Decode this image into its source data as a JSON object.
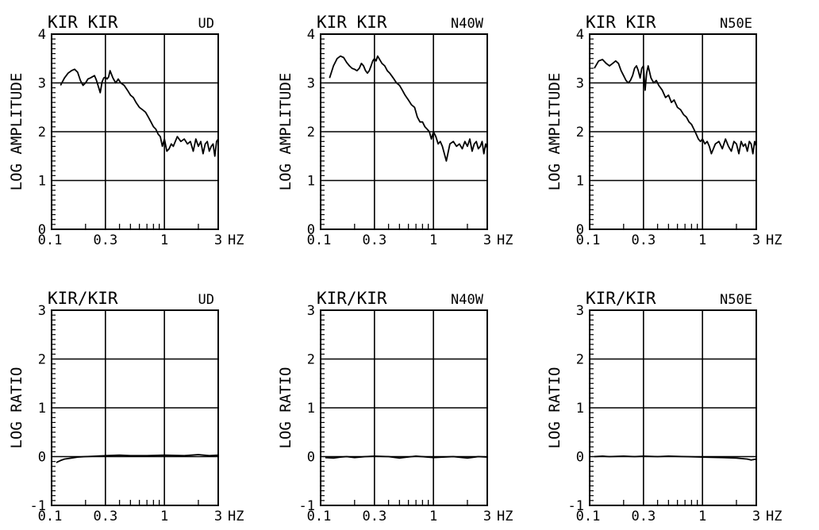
{
  "chart_data": [
    {
      "type": "line",
      "title": "KIR KIR",
      "component": "UD",
      "ylabel": "LOG AMPLITUDE",
      "xunit": "HZ",
      "xscale": "log",
      "xlim": [
        0.1,
        3
      ],
      "ylim": [
        0,
        4
      ],
      "x_tick_labels": [
        "0.1",
        "0.3",
        "1",
        "3"
      ],
      "y_tick_labels": [
        "0",
        "1",
        "2",
        "3",
        "4"
      ],
      "grid": true,
      "series": [
        {
          "x": [
            0.12,
            0.13,
            0.14,
            0.15,
            0.16,
            0.17,
            0.18,
            0.19,
            0.2,
            0.21,
            0.22,
            0.24,
            0.25,
            0.27,
            0.28,
            0.29,
            0.3,
            0.31,
            0.32,
            0.33,
            0.35,
            0.37,
            0.39,
            0.41,
            0.44,
            0.47,
            0.5,
            0.53,
            0.56,
            0.6,
            0.64,
            0.68,
            0.72,
            0.76,
            0.8,
            0.84,
            0.88,
            0.92,
            0.96,
            1.0,
            1.05,
            1.1,
            1.15,
            1.2,
            1.3,
            1.4,
            1.5,
            1.6,
            1.7,
            1.8,
            1.9,
            2.0,
            2.1,
            2.2,
            2.3,
            2.4,
            2.5,
            2.6,
            2.7,
            2.8,
            2.9,
            3.0
          ],
          "values": [
            2.95,
            3.1,
            3.2,
            3.25,
            3.28,
            3.22,
            3.05,
            2.95,
            3.0,
            3.08,
            3.1,
            3.15,
            3.05,
            2.8,
            3.02,
            3.1,
            3.12,
            3.08,
            3.12,
            3.25,
            3.1,
            3.0,
            3.08,
            3.0,
            2.95,
            2.85,
            2.75,
            2.7,
            2.6,
            2.5,
            2.45,
            2.4,
            2.3,
            2.2,
            2.1,
            2.05,
            1.95,
            1.9,
            1.7,
            1.85,
            1.6,
            1.65,
            1.75,
            1.7,
            1.9,
            1.8,
            1.85,
            1.75,
            1.8,
            1.6,
            1.85,
            1.7,
            1.8,
            1.55,
            1.75,
            1.8,
            1.6,
            1.7,
            1.75,
            1.5,
            1.8,
            1.85
          ]
        }
      ]
    },
    {
      "type": "line",
      "title": "KIR KIR",
      "component": "N40W",
      "ylabel": "LOG AMPLITUDE",
      "xunit": "HZ",
      "xscale": "log",
      "xlim": [
        0.1,
        3
      ],
      "ylim": [
        0,
        4
      ],
      "x_tick_labels": [
        "0.1",
        "0.3",
        "1",
        "3"
      ],
      "y_tick_labels": [
        "0",
        "1",
        "2",
        "3",
        "4"
      ],
      "grid": true,
      "series": [
        {
          "x": [
            0.12,
            0.13,
            0.14,
            0.15,
            0.16,
            0.17,
            0.18,
            0.19,
            0.2,
            0.21,
            0.22,
            0.23,
            0.24,
            0.25,
            0.26,
            0.27,
            0.28,
            0.29,
            0.3,
            0.31,
            0.32,
            0.33,
            0.35,
            0.37,
            0.39,
            0.41,
            0.44,
            0.47,
            0.5,
            0.53,
            0.56,
            0.6,
            0.64,
            0.68,
            0.72,
            0.76,
            0.8,
            0.84,
            0.88,
            0.92,
            0.96,
            1.0,
            1.05,
            1.1,
            1.15,
            1.2,
            1.3,
            1.4,
            1.5,
            1.6,
            1.7,
            1.8,
            1.9,
            2.0,
            2.1,
            2.2,
            2.3,
            2.4,
            2.5,
            2.6,
            2.7,
            2.8,
            2.9,
            3.0
          ],
          "values": [
            3.1,
            3.35,
            3.5,
            3.55,
            3.52,
            3.42,
            3.35,
            3.3,
            3.28,
            3.25,
            3.3,
            3.4,
            3.35,
            3.25,
            3.2,
            3.25,
            3.35,
            3.45,
            3.5,
            3.45,
            3.55,
            3.5,
            3.4,
            3.35,
            3.25,
            3.2,
            3.1,
            3.0,
            2.95,
            2.85,
            2.75,
            2.65,
            2.55,
            2.5,
            2.3,
            2.2,
            2.2,
            2.1,
            2.05,
            2.0,
            1.85,
            2.0,
            1.9,
            1.75,
            1.8,
            1.7,
            1.4,
            1.75,
            1.8,
            1.7,
            1.75,
            1.65,
            1.8,
            1.7,
            1.85,
            1.6,
            1.75,
            1.8,
            1.65,
            1.7,
            1.8,
            1.55,
            1.75,
            1.65
          ]
        }
      ]
    },
    {
      "type": "line",
      "title": "KIR KIR",
      "component": "N50E",
      "ylabel": "LOG AMPLITUDE",
      "xunit": "HZ",
      "xscale": "log",
      "xlim": [
        0.1,
        3
      ],
      "ylim": [
        0,
        4
      ],
      "x_tick_labels": [
        "0.1",
        "0.3",
        "1",
        "3"
      ],
      "y_tick_labels": [
        "0",
        "1",
        "2",
        "3",
        "4"
      ],
      "grid": true,
      "series": [
        {
          "x": [
            0.11,
            0.12,
            0.13,
            0.14,
            0.15,
            0.16,
            0.17,
            0.18,
            0.19,
            0.2,
            0.21,
            0.22,
            0.23,
            0.24,
            0.25,
            0.26,
            0.27,
            0.28,
            0.29,
            0.3,
            0.31,
            0.32,
            0.33,
            0.35,
            0.37,
            0.39,
            0.41,
            0.44,
            0.47,
            0.5,
            0.53,
            0.56,
            0.6,
            0.64,
            0.68,
            0.72,
            0.76,
            0.8,
            0.84,
            0.88,
            0.92,
            0.96,
            1.0,
            1.05,
            1.1,
            1.15,
            1.2,
            1.3,
            1.4,
            1.5,
            1.6,
            1.7,
            1.8,
            1.9,
            2.0,
            2.1,
            2.2,
            2.3,
            2.4,
            2.5,
            2.6,
            2.7,
            2.8,
            2.9,
            3.0
          ],
          "values": [
            3.3,
            3.45,
            3.48,
            3.4,
            3.35,
            3.4,
            3.45,
            3.4,
            3.25,
            3.15,
            3.05,
            3.0,
            3.05,
            3.15,
            3.3,
            3.35,
            3.25,
            3.1,
            3.3,
            3.35,
            2.85,
            3.2,
            3.35,
            3.1,
            3.0,
            3.05,
            2.95,
            2.85,
            2.7,
            2.75,
            2.6,
            2.65,
            2.5,
            2.45,
            2.35,
            2.3,
            2.2,
            2.15,
            2.05,
            1.95,
            1.85,
            1.8,
            1.85,
            1.75,
            1.8,
            1.7,
            1.55,
            1.75,
            1.8,
            1.65,
            1.85,
            1.7,
            1.6,
            1.8,
            1.75,
            1.55,
            1.8,
            1.7,
            1.75,
            1.6,
            1.8,
            1.75,
            1.55,
            1.8,
            1.7
          ]
        }
      ]
    },
    {
      "type": "line",
      "title": "KIR/KIR",
      "component": "UD",
      "ylabel": "LOG RATIO",
      "xunit": "HZ",
      "xscale": "log",
      "xlim": [
        0.1,
        3
      ],
      "ylim": [
        -1,
        3
      ],
      "x_tick_labels": [
        "0.1",
        "0.3",
        "1",
        "3"
      ],
      "y_tick_labels": [
        "-1",
        "0",
        "1",
        "2",
        "3"
      ],
      "grid": true,
      "series": [
        {
          "x": [
            0.11,
            0.12,
            0.13,
            0.15,
            0.17,
            0.2,
            0.25,
            0.3,
            0.4,
            0.5,
            0.7,
            1.0,
            1.5,
            2.0,
            2.5,
            3.0
          ],
          "values": [
            -0.12,
            -0.08,
            -0.05,
            -0.03,
            -0.01,
            0.0,
            0.01,
            0.02,
            0.03,
            0.02,
            0.02,
            0.03,
            0.02,
            0.04,
            0.02,
            0.03
          ]
        }
      ]
    },
    {
      "type": "line",
      "title": "KIR/KIR",
      "component": "N40W",
      "ylabel": "LOG RATIO",
      "xunit": "HZ",
      "xscale": "log",
      "xlim": [
        0.1,
        3
      ],
      "ylim": [
        -1,
        3
      ],
      "x_tick_labels": [
        "0.1",
        "0.3",
        "1",
        "3"
      ],
      "y_tick_labels": [
        "-1",
        "0",
        "1",
        "2",
        "3"
      ],
      "grid": true,
      "series": [
        {
          "x": [
            0.11,
            0.13,
            0.15,
            0.17,
            0.2,
            0.25,
            0.3,
            0.4,
            0.5,
            0.7,
            1.0,
            1.5,
            2.0,
            2.5,
            3.0
          ],
          "values": [
            -0.02,
            -0.03,
            -0.01,
            0.0,
            -0.02,
            0.0,
            0.01,
            0.0,
            -0.03,
            0.01,
            -0.02,
            0.0,
            -0.03,
            0.0,
            -0.01
          ]
        }
      ]
    },
    {
      "type": "line",
      "title": "KIR/KIR",
      "component": "N50E",
      "ylabel": "LOG RATIO",
      "xunit": "HZ",
      "xscale": "log",
      "xlim": [
        0.1,
        3
      ],
      "ylim": [
        -1,
        3
      ],
      "x_tick_labels": [
        "0.1",
        "0.3",
        "1",
        "3"
      ],
      "y_tick_labels": [
        "-1",
        "0",
        "1",
        "2",
        "3"
      ],
      "grid": true,
      "series": [
        {
          "x": [
            0.11,
            0.13,
            0.15,
            0.2,
            0.25,
            0.3,
            0.4,
            0.5,
            0.7,
            1.0,
            1.5,
            2.0,
            2.5,
            2.7,
            3.0
          ],
          "values": [
            0.0,
            0.01,
            0.0,
            0.01,
            0.0,
            0.01,
            0.0,
            0.01,
            0.0,
            -0.01,
            -0.02,
            -0.03,
            -0.05,
            -0.07,
            -0.05
          ]
        }
      ]
    }
  ]
}
